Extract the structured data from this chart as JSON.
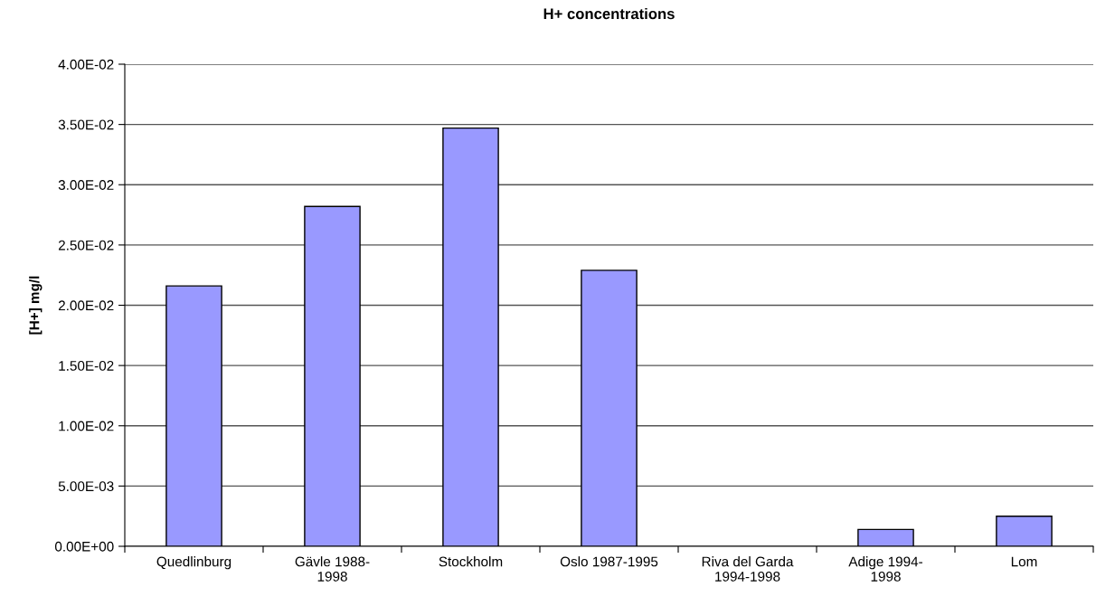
{
  "chart_data": {
    "type": "bar",
    "title": "H+ concentrations",
    "ylabel": "[H+] mg/l",
    "categories": [
      "Quedlinburg",
      "Gävle 1988-\n1998",
      "Stockholm",
      "Oslo 1987-1995",
      "Riva del Garda\n1994-1998",
      "Adige 1994-\n1998",
      "Lom"
    ],
    "values": [
      0.0216,
      0.0282,
      0.0347,
      0.0229,
      null,
      0.0014,
      0.0025
    ],
    "color": "#9999ff",
    "ylim": [
      0,
      0.04
    ],
    "yticks": [
      {
        "value": 0,
        "label": "0.00E+00"
      },
      {
        "value": 0.005,
        "label": "5.00E-03"
      },
      {
        "value": 0.01,
        "label": "1.00E-02"
      },
      {
        "value": 0.015,
        "label": "1.50E-02"
      },
      {
        "value": 0.02,
        "label": "2.00E-02"
      },
      {
        "value": 0.025,
        "label": "2.50E-02"
      },
      {
        "value": 0.03,
        "label": "3.00E-02"
      },
      {
        "value": 0.035,
        "label": "3.50E-02"
      },
      {
        "value": 0.04,
        "label": "4.00E-02"
      }
    ],
    "grid": "y",
    "legend": false
  }
}
